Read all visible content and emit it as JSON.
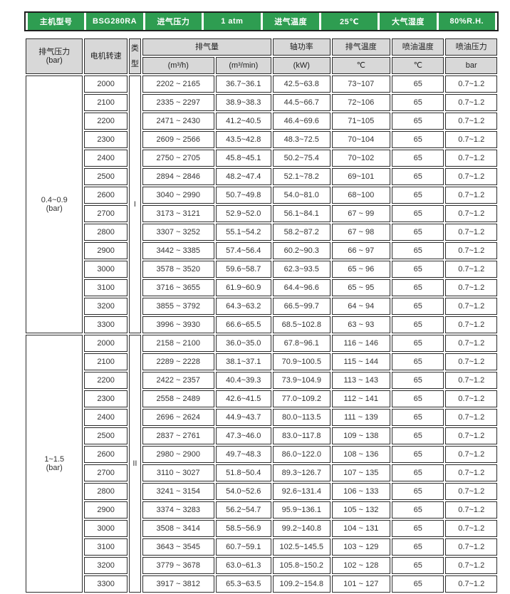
{
  "colors": {
    "header_green": "#2e9d51",
    "header_gray": "#d8d8d8",
    "border": "#2b2b2b",
    "text": "#333333"
  },
  "top_header": {
    "cells": [
      {
        "label": "主机型号"
      },
      {
        "label": "BSG280RA"
      },
      {
        "label": "进气压力"
      },
      {
        "label": "1 atm"
      },
      {
        "label": "进气温度"
      },
      {
        "label": "25℃"
      },
      {
        "label": "大气湿度"
      },
      {
        "label": "80%R.H."
      }
    ]
  },
  "table": {
    "header": {
      "discharge_pressure": "排气压力",
      "discharge_pressure_unit": "(bar)",
      "motor_speed": "电机转速",
      "type_top": "类",
      "type_bottom": "型",
      "capacity": "排气量",
      "capacity_unit_h": "(m³/h)",
      "capacity_unit_min": "(m³/min)",
      "shaft_power": "轴功率",
      "shaft_power_unit": "(kW)",
      "discharge_temp": "排气温度",
      "discharge_temp_unit": "℃",
      "oil_temp": "喷油温度",
      "oil_temp_unit": "℃",
      "oil_pressure": "喷油压力",
      "oil_pressure_unit": "bar"
    },
    "groups": [
      {
        "pressure": "0.4~0.9",
        "pressure_unit": "(bar)",
        "type": "I",
        "rows": [
          [
            "2000",
            "2202 ~ 2165",
            "36.7~36.1",
            "42.5~63.8",
            "73~107",
            "65",
            "0.7~1.2"
          ],
          [
            "2100",
            "2335 ~ 2297",
            "38.9~38.3",
            "44.5~66.7",
            "72~106",
            "65",
            "0.7~1.2"
          ],
          [
            "2200",
            "2471 ~ 2430",
            "41.2~40.5",
            "46.4~69.6",
            "71~105",
            "65",
            "0.7~1.2"
          ],
          [
            "2300",
            "2609 ~ 2566",
            "43.5~42.8",
            "48.3~72.5",
            "70~104",
            "65",
            "0.7~1.2"
          ],
          [
            "2400",
            "2750 ~ 2705",
            "45.8~45.1",
            "50.2~75.4",
            "70~102",
            "65",
            "0.7~1.2"
          ],
          [
            "2500",
            "2894 ~ 2846",
            "48.2~47.4",
            "52.1~78.2",
            "69~101",
            "65",
            "0.7~1.2"
          ],
          [
            "2600",
            "3040 ~ 2990",
            "50.7~49.8",
            "54.0~81.0",
            "68~100",
            "65",
            "0.7~1.2"
          ],
          [
            "2700",
            "3173 ~ 3121",
            "52.9~52.0",
            "56.1~84.1",
            "67 ~ 99",
            "65",
            "0.7~1.2"
          ],
          [
            "2800",
            "3307 ~ 3252",
            "55.1~54.2",
            "58.2~87.2",
            "67 ~ 98",
            "65",
            "0.7~1.2"
          ],
          [
            "2900",
            "3442 ~ 3385",
            "57.4~56.4",
            "60.2~90.3",
            "66 ~ 97",
            "65",
            "0.7~1.2"
          ],
          [
            "3000",
            "3578 ~ 3520",
            "59.6~58.7",
            "62.3~93.5",
            "65 ~ 96",
            "65",
            "0.7~1.2"
          ],
          [
            "3100",
            "3716 ~ 3655",
            "61.9~60.9",
            "64.4~96.6",
            "65 ~ 95",
            "65",
            "0.7~1.2"
          ],
          [
            "3200",
            "3855 ~ 3792",
            "64.3~63.2",
            "66.5~99.7",
            "64 ~ 94",
            "65",
            "0.7~1.2"
          ],
          [
            "3300",
            "3996 ~ 3930",
            "66.6~65.5",
            "68.5~102.8",
            "63 ~ 93",
            "65",
            "0.7~1.2"
          ]
        ]
      },
      {
        "pressure": "1~1.5",
        "pressure_unit": "(bar)",
        "type": "II",
        "rows": [
          [
            "2000",
            "2158 ~ 2100",
            "36.0~35.0",
            "67.8~96.1",
            "116 ~ 146",
            "65",
            "0.7~1.2"
          ],
          [
            "2100",
            "2289 ~ 2228",
            "38.1~37.1",
            "70.9~100.5",
            "115 ~ 144",
            "65",
            "0.7~1.2"
          ],
          [
            "2200",
            "2422 ~ 2357",
            "40.4~39.3",
            "73.9~104.9",
            "113 ~ 143",
            "65",
            "0.7~1.2"
          ],
          [
            "2300",
            "2558 ~ 2489",
            "42.6~41.5",
            "77.0~109.2",
            "112 ~ 141",
            "65",
            "0.7~1.2"
          ],
          [
            "2400",
            "2696 ~ 2624",
            "44.9~43.7",
            "80.0~113.5",
            "111 ~ 139",
            "65",
            "0.7~1.2"
          ],
          [
            "2500",
            "2837 ~ 2761",
            "47.3~46.0",
            "83.0~117.8",
            "109 ~ 138",
            "65",
            "0.7~1.2"
          ],
          [
            "2600",
            "2980 ~ 2900",
            "49.7~48.3",
            "86.0~122.0",
            "108 ~ 136",
            "65",
            "0.7~1.2"
          ],
          [
            "2700",
            "3110 ~ 3027",
            "51.8~50.4",
            "89.3~126.7",
            "107 ~ 135",
            "65",
            "0.7~1.2"
          ],
          [
            "2800",
            "3241 ~ 3154",
            "54.0~52.6",
            "92.6~131.4",
            "106 ~ 133",
            "65",
            "0.7~1.2"
          ],
          [
            "2900",
            "3374 ~ 3283",
            "56.2~54.7",
            "95.9~136.1",
            "105 ~ 132",
            "65",
            "0.7~1.2"
          ],
          [
            "3000",
            "3508 ~ 3414",
            "58.5~56.9",
            "99.2~140.8",
            "104 ~ 131",
            "65",
            "0.7~1.2"
          ],
          [
            "3100",
            "3643 ~ 3545",
            "60.7~59.1",
            "102.5~145.5",
            "103 ~ 129",
            "65",
            "0.7~1.2"
          ],
          [
            "3200",
            "3779 ~ 3678",
            "63.0~61.3",
            "105.8~150.2",
            "102 ~ 128",
            "65",
            "0.7~1.2"
          ],
          [
            "3300",
            "3917 ~ 3812",
            "65.3~63.5",
            "109.2~154.8",
            "101 ~ 127",
            "65",
            "0.7~1.2"
          ]
        ]
      }
    ]
  }
}
